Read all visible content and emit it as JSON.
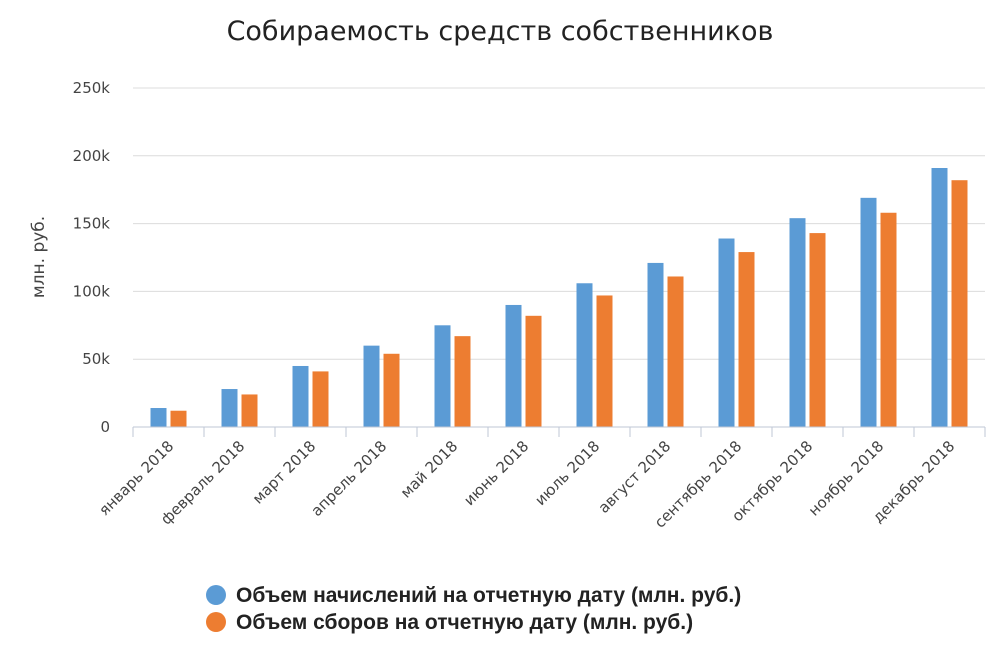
{
  "chart_data": {
    "type": "bar",
    "title": "Собираемость средств собственников",
    "ylabel": "млн. руб.",
    "xlabel": "",
    "ylim": [
      0,
      250000
    ],
    "yticks": [
      {
        "value": 0,
        "label": "0"
      },
      {
        "value": 50000,
        "label": "50k"
      },
      {
        "value": 100000,
        "label": "100k"
      },
      {
        "value": 150000,
        "label": "150k"
      },
      {
        "value": 200000,
        "label": "200k"
      },
      {
        "value": 250000,
        "label": "250k"
      }
    ],
    "categories": [
      "январь 2018",
      "февраль 2018",
      "март 2018",
      "апрель 2018",
      "май 2018",
      "июнь 2018",
      "июль 2018",
      "август 2018",
      "сентябрь 2018",
      "октябрь 2018",
      "ноябрь 2018",
      "декабрь 2018"
    ],
    "series": [
      {
        "name": "Объем начислений на отчетную дату (млн. руб.)",
        "color": "#5b9bd5",
        "values": [
          14000,
          28000,
          45000,
          60000,
          75000,
          90000,
          106000,
          121000,
          139000,
          154000,
          169000,
          191000
        ]
      },
      {
        "name": "Объем сборов на отчетную дату (млн. руб.)",
        "color": "#ed7d31",
        "values": [
          12000,
          24000,
          41000,
          54000,
          67000,
          82000,
          97000,
          111000,
          129000,
          143000,
          158000,
          182000
        ]
      }
    ],
    "grid": true,
    "legend_position": "bottom"
  }
}
